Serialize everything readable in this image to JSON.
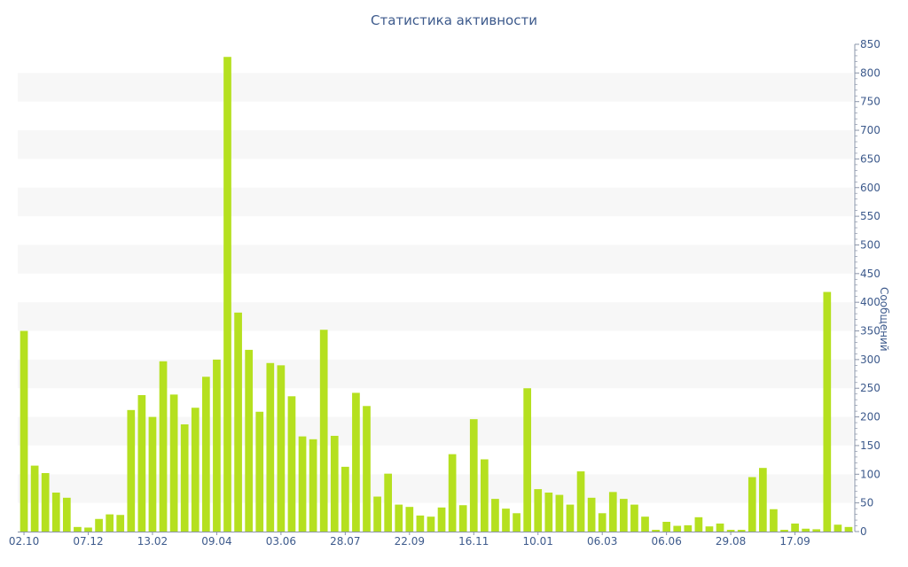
{
  "chart_data": {
    "type": "bar",
    "title": "Статистика активности",
    "ylabel": "Сообщений",
    "xlabel": "",
    "ylim": [
      0,
      850
    ],
    "y_ticks": [
      0,
      50,
      100,
      150,
      200,
      250,
      300,
      350,
      400,
      450,
      500,
      550,
      600,
      650,
      700,
      750,
      800,
      850
    ],
    "y_axis_position": "right",
    "x_tick_labels": [
      {
        "index": 0,
        "label": "02.10"
      },
      {
        "index": 6,
        "label": "07.12"
      },
      {
        "index": 12,
        "label": "13.02"
      },
      {
        "index": 18,
        "label": "09.04"
      },
      {
        "index": 24,
        "label": "03.06"
      },
      {
        "index": 30,
        "label": "28.07"
      },
      {
        "index": 36,
        "label": "22.09"
      },
      {
        "index": 42,
        "label": "16.11"
      },
      {
        "index": 48,
        "label": "10.01"
      },
      {
        "index": 54,
        "label": "06.03"
      },
      {
        "index": 60,
        "label": "06.06"
      },
      {
        "index": 66,
        "label": "29.08"
      },
      {
        "index": 72,
        "label": "17.09"
      }
    ],
    "values": [
      350,
      115,
      102,
      68,
      59,
      8,
      7,
      22,
      30,
      29,
      212,
      238,
      200,
      297,
      239,
      187,
      216,
      270,
      300,
      828,
      382,
      317,
      209,
      294,
      290,
      236,
      166,
      161,
      352,
      167,
      113,
      242,
      219,
      61,
      101,
      47,
      43,
      28,
      26,
      42,
      135,
      46,
      196,
      126,
      57,
      40,
      32,
      250,
      74,
      68,
      64,
      47,
      105,
      59,
      32,
      69,
      57,
      47,
      26,
      3,
      17,
      10,
      11,
      25,
      9,
      14,
      3,
      3,
      95,
      111,
      39,
      3,
      14,
      5,
      4,
      418,
      12,
      8
    ],
    "colors": {
      "bar": "#b5e01f",
      "axis_text": "#3d5a8c",
      "band": "#f7f7f7",
      "axis_line": "#8a94a8"
    },
    "grid": "alternating horizontal bands",
    "legend": "none"
  }
}
